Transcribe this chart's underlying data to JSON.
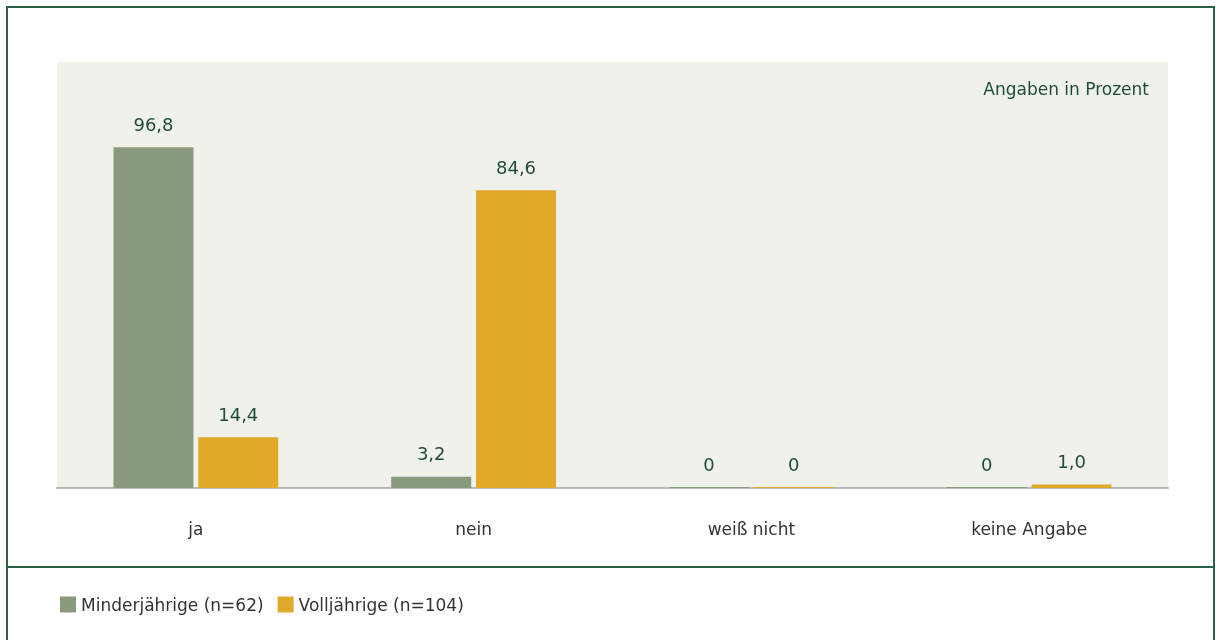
{
  "chart_data": {
    "type": "bar",
    "categories": [
      "ja",
      "nein",
      "weiß nicht",
      "keine Angabe"
    ],
    "series": [
      {
        "name": "Minderjährige (n=62)",
        "color": "#8a9a7c",
        "values": [
          96.8,
          3.2,
          0,
          0
        ],
        "value_labels": [
          "96,8",
          "3,2",
          "0",
          "0"
        ]
      },
      {
        "name": "Volljährige (n=104)",
        "color": "#e0a92a",
        "values": [
          14.4,
          84.6,
          0,
          1.0
        ],
        "value_labels": [
          "14,4",
          "84,6",
          "0",
          "1,0"
        ]
      }
    ],
    "annotations": [
      "Angaben in Prozent"
    ],
    "legend": "bottom left",
    "grid": false
  }
}
